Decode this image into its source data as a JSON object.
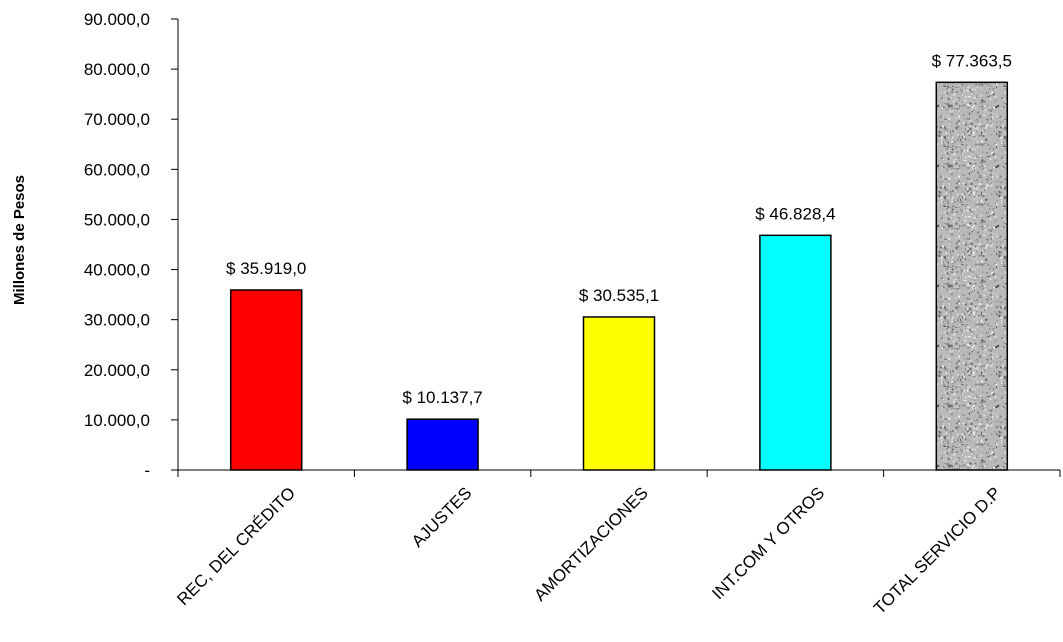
{
  "chart_data": {
    "type": "bar",
    "title": "",
    "xlabel": "",
    "ylabel": "Millones de Pesos",
    "ylim": [
      0,
      90000
    ],
    "y_ticks": [
      {
        "value": 0,
        "label": "-"
      },
      {
        "value": 10000,
        "label": "10.000,0"
      },
      {
        "value": 20000,
        "label": "20.000,0"
      },
      {
        "value": 30000,
        "label": "30.000,0"
      },
      {
        "value": 40000,
        "label": "40.000,0"
      },
      {
        "value": 50000,
        "label": "50.000,0"
      },
      {
        "value": 60000,
        "label": "60.000,0"
      },
      {
        "value": 70000,
        "label": "70.000,0"
      },
      {
        "value": 80000,
        "label": "80.000,0"
      },
      {
        "value": 90000,
        "label": "90.000,0"
      }
    ],
    "categories": [
      "REC, DEL CRÉDITO",
      "AJUSTES",
      "AMORTIZACIONES",
      "INT.COM Y OTROS",
      "TOTAL SERVICIO D.P"
    ],
    "values": [
      35919.0,
      10137.7,
      30535.1,
      46828.4,
      77363.5
    ],
    "data_labels": [
      "$ 35.919,0",
      "$ 10.137,7",
      "$ 30.535,1",
      "$ 46.828,4",
      "$ 77.363,5"
    ],
    "colors": [
      "#ff0000",
      "#0000ff",
      "#ffff00",
      "#00ffff",
      "pattern-granite"
    ],
    "grid": false,
    "legend": "none"
  }
}
